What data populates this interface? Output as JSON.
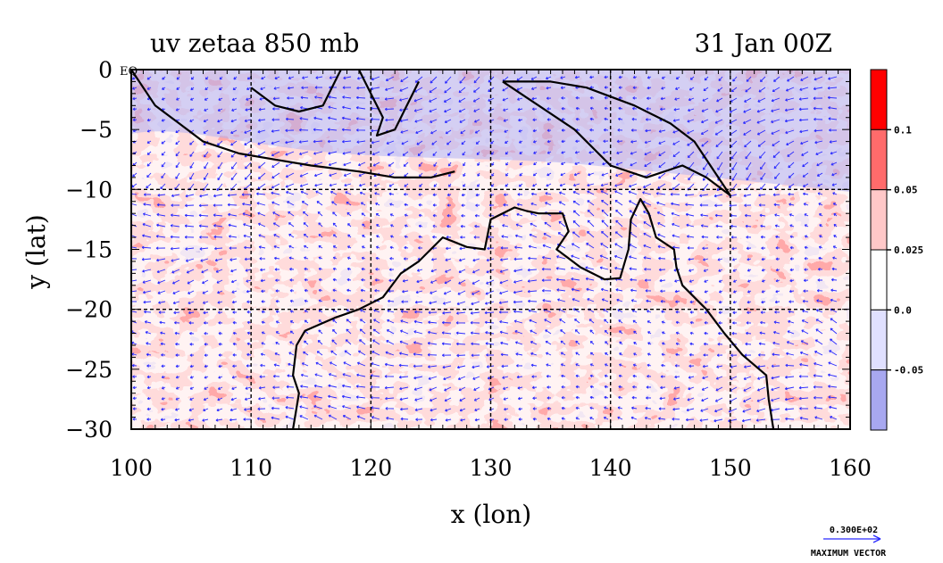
{
  "chart_data": {
    "type": "heatmap",
    "title": "uv zetaa 850 mb",
    "subtitle": "31 Jan 00Z",
    "xlabel": "x (lon)",
    "ylabel": "y (lat)",
    "xlim": [
      100,
      160
    ],
    "ylim": [
      -30,
      0
    ],
    "x_ticks": [
      "100",
      "110",
      "120",
      "130",
      "140",
      "150",
      "160"
    ],
    "y_ticks": [
      "0",
      "−5",
      "−10",
      "−15",
      "−20",
      "−25",
      "−30"
    ],
    "equator_label": "EQ",
    "grid": true,
    "colorbar": {
      "placement": "right",
      "levels": [
        "0.1",
        "0.05",
        "0.025",
        "0.0",
        "-0.05"
      ],
      "colors": [
        "#ff0000",
        "#ff6b6b",
        "#ffc8c8",
        "#ffffff",
        "#e0e0ff",
        "#a8a8f0"
      ]
    },
    "vector_legend": {
      "value": "0.300E+02",
      "label": "MAXIMUM VECTOR",
      "color": "#2a2aff"
    },
    "coast_segments": [
      {
        "name": "sumatra-java",
        "points": [
          [
            100,
            0
          ],
          [
            102,
            -3
          ],
          [
            104,
            -4.5
          ],
          [
            106,
            -6
          ],
          [
            109,
            -7
          ],
          [
            112,
            -7.5
          ],
          [
            115,
            -8
          ],
          [
            119,
            -8.5
          ],
          [
            122,
            -9
          ],
          [
            125,
            -9
          ],
          [
            127,
            -8.5
          ]
        ]
      },
      {
        "name": "borneo-south",
        "points": [
          [
            110,
            -1.5
          ],
          [
            112,
            -3
          ],
          [
            114,
            -3.5
          ],
          [
            116,
            -3
          ],
          [
            117,
            -1
          ],
          [
            117.5,
            0
          ]
        ]
      },
      {
        "name": "sulawesi",
        "points": [
          [
            119,
            0
          ],
          [
            120,
            -2
          ],
          [
            121,
            -4
          ],
          [
            120.5,
            -5.5
          ],
          [
            122,
            -5
          ],
          [
            123,
            -3
          ],
          [
            124,
            -1
          ]
        ]
      },
      {
        "name": "new-guinea",
        "points": [
          [
            131,
            -1
          ],
          [
            134,
            -3
          ],
          [
            137,
            -5
          ],
          [
            140,
            -8
          ],
          [
            143,
            -9
          ],
          [
            146,
            -8
          ],
          [
            148,
            -9
          ],
          [
            150,
            -10.5
          ],
          [
            147,
            -6
          ],
          [
            145,
            -4.5
          ],
          [
            142,
            -3
          ],
          [
            138,
            -1.5
          ],
          [
            135,
            -1
          ],
          [
            131,
            -1
          ]
        ]
      },
      {
        "name": "australia-west-north",
        "points": [
          [
            113.5,
            -30
          ],
          [
            114,
            -27
          ],
          [
            113.5,
            -25.5
          ],
          [
            113.8,
            -23
          ],
          [
            114.5,
            -21.8
          ],
          [
            117,
            -20.7
          ],
          [
            119,
            -20
          ],
          [
            121,
            -19
          ],
          [
            122.5,
            -17
          ],
          [
            124,
            -16
          ],
          [
            126,
            -14
          ],
          [
            128,
            -14.8
          ],
          [
            129.5,
            -15
          ],
          [
            130,
            -12.5
          ],
          [
            132,
            -11.5
          ],
          [
            133,
            -11.8
          ],
          [
            134,
            -12
          ],
          [
            136,
            -12
          ],
          [
            136.5,
            -13.5
          ],
          [
            135.5,
            -15
          ],
          [
            137.5,
            -16.5
          ],
          [
            139.5,
            -17.5
          ],
          [
            140.8,
            -17.4
          ],
          [
            141.5,
            -15
          ],
          [
            141.7,
            -12.5
          ],
          [
            142.5,
            -10.8
          ],
          [
            143.2,
            -12
          ],
          [
            143.8,
            -14
          ],
          [
            145.3,
            -15
          ],
          [
            145.5,
            -16.5
          ],
          [
            146,
            -18
          ],
          [
            148,
            -20
          ],
          [
            149.5,
            -22
          ],
          [
            151,
            -23.8
          ],
          [
            153,
            -25.5
          ],
          [
            153.2,
            -27.5
          ],
          [
            153.6,
            -30
          ]
        ]
      }
    ]
  }
}
